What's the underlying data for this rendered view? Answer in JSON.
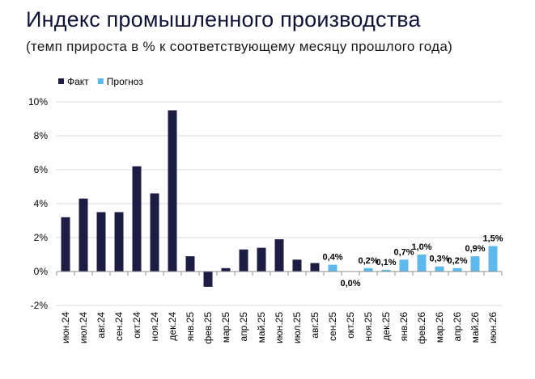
{
  "title": "Индекс промышленного производства",
  "subtitle": "(темп прироста в % к соответствующему месяцу прошлого года)",
  "chart_data": {
    "type": "bar",
    "title": "Индекс промышленного производства",
    "subtitle": "(темп прироста в % к соответствующему месяцу прошлого года)",
    "xlabel": "",
    "ylabel": "",
    "ylim": [
      -2,
      10
    ],
    "yticks": [
      -2,
      0,
      2,
      4,
      6,
      8,
      10
    ],
    "ytick_labels": [
      "-2%",
      "0%",
      "2%",
      "4%",
      "6%",
      "8%",
      "10%"
    ],
    "grid": true,
    "legend_position": "top-left",
    "categories": [
      "июн.24",
      "июл.24",
      "авг.24",
      "сен.24",
      "окт.24",
      "ноя.24",
      "дек.24",
      "янв.25",
      "фев.25",
      "мар.25",
      "апр.25",
      "май.25",
      "июн.25",
      "июл.25",
      "авг.25",
      "сен.25",
      "окт.25",
      "ноя.25",
      "дек.25",
      "янв.26",
      "фев.26",
      "мар.26",
      "апр.26",
      "май.26",
      "июн.26"
    ],
    "series": [
      {
        "name": "Факт",
        "color": "#1c1c45",
        "values": [
          3.2,
          4.3,
          3.5,
          3.5,
          6.2,
          4.6,
          9.5,
          0.9,
          -0.9,
          0.2,
          1.3,
          1.4,
          1.9,
          0.7,
          0.5,
          null,
          null,
          null,
          null,
          null,
          null,
          null,
          null,
          null,
          null
        ]
      },
      {
        "name": "Прогноз",
        "color": "#5db8ec",
        "values": [
          null,
          null,
          null,
          null,
          null,
          null,
          null,
          null,
          null,
          null,
          null,
          null,
          null,
          null,
          null,
          0.4,
          0.0,
          0.2,
          0.1,
          0.7,
          1.0,
          0.3,
          0.2,
          0.9,
          1.5
        ],
        "data_labels": [
          null,
          null,
          null,
          null,
          null,
          null,
          null,
          null,
          null,
          null,
          null,
          null,
          null,
          null,
          null,
          "0,4%",
          "0,0%",
          "0,2%",
          "0,1%",
          "0,7%",
          "1,0%",
          "0,3%",
          "0,2%",
          "0,9%",
          "1,5%"
        ]
      }
    ]
  }
}
